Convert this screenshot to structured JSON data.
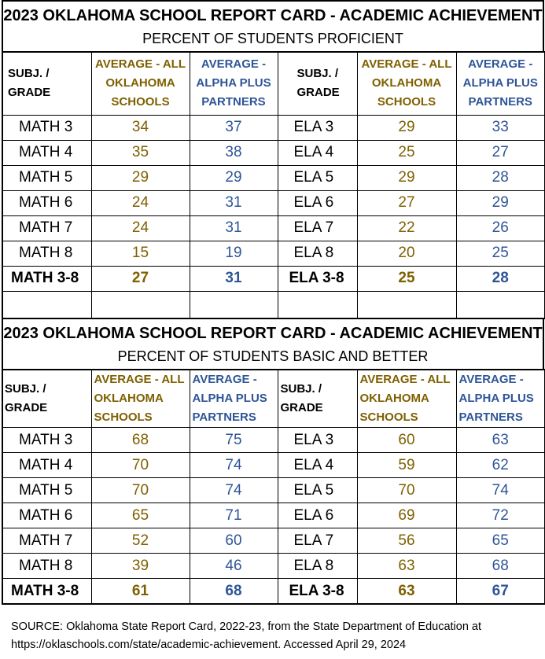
{
  "report1": {
    "title": "2023 OKLAHOMA SCHOOL REPORT CARD - ACADEMIC ACHIEVEMENT",
    "subtitle": "PERCENT OF STUDENTS PROFICIENT",
    "headers": {
      "math_subject": "SUBJ. / GRADE",
      "avg_all": [
        "AVERAGE - ALL",
        "OKLAHOMA",
        "SCHOOLS"
      ],
      "avg_alpha": [
        "AVERAGE -",
        "ALPHA PLUS",
        "PARTNERS"
      ],
      "ela_subject": [
        "SUBJ. /",
        "GRADE"
      ]
    },
    "rows": [
      {
        "math": "MATH 3",
        "math_all": "34",
        "math_alpha": "37",
        "ela": "ELA 3",
        "ela_all": "29",
        "ela_alpha": "33"
      },
      {
        "math": "MATH 4",
        "math_all": "35",
        "math_alpha": "38",
        "ela": "ELA 4",
        "ela_all": "25",
        "ela_alpha": "27"
      },
      {
        "math": "MATH 5",
        "math_all": "29",
        "math_alpha": "29",
        "ela": "ELA 5",
        "ela_all": "29",
        "ela_alpha": "28"
      },
      {
        "math": "MATH 6",
        "math_all": "24",
        "math_alpha": "31",
        "ela": "ELA 6",
        "ela_all": "27",
        "ela_alpha": "29"
      },
      {
        "math": "MATH 7",
        "math_all": "24",
        "math_alpha": "31",
        "ela": "ELA 7",
        "ela_all": "22",
        "ela_alpha": "26"
      },
      {
        "math": "MATH 8",
        "math_all": "15",
        "math_alpha": "19",
        "ela": "ELA 8",
        "ela_all": "20",
        "ela_alpha": "25"
      }
    ],
    "total": {
      "math": "MATH 3-8",
      "math_all": "27",
      "math_alpha": "31",
      "ela": "ELA 3-8",
      "ela_all": "25",
      "ela_alpha": "28"
    }
  },
  "report2": {
    "title": "2023 OKLAHOMA SCHOOL REPORT CARD - ACADEMIC ACHIEVEMENT",
    "subtitle": "PERCENT OF STUDENTS BASIC AND BETTER",
    "headers": {
      "math_subject": "SUBJ. / GRADE",
      "avg_all": [
        "AVERAGE - ALL",
        "OKLAHOMA",
        "SCHOOLS"
      ],
      "avg_alpha": [
        "AVERAGE -",
        "ALPHA PLUS",
        "PARTNERS"
      ],
      "ela_subject": [
        "SUBJ. /",
        "GRADE"
      ]
    },
    "rows": [
      {
        "math": "MATH 3",
        "math_all": "68",
        "math_alpha": "75",
        "ela": "ELA 3",
        "ela_all": "60",
        "ela_alpha": "63"
      },
      {
        "math": "MATH 4",
        "math_all": "70",
        "math_alpha": "74",
        "ela": "ELA 4",
        "ela_all": "59",
        "ela_alpha": "62"
      },
      {
        "math": "MATH 5",
        "math_all": "70",
        "math_alpha": "74",
        "ela": "ELA 5",
        "ela_all": "70",
        "ela_alpha": "74"
      },
      {
        "math": "MATH 6",
        "math_all": "65",
        "math_alpha": "71",
        "ela": "ELA 6",
        "ela_all": "69",
        "ela_alpha": "72"
      },
      {
        "math": "MATH 7",
        "math_all": "52",
        "math_alpha": "60",
        "ela": "ELA 7",
        "ela_all": "56",
        "ela_alpha": "65"
      },
      {
        "math": "MATH 8",
        "math_all": "39",
        "math_alpha": "46",
        "ela": "ELA 8",
        "ela_all": "63",
        "ela_alpha": "68"
      }
    ],
    "total": {
      "math": "MATH 3-8",
      "math_all": "61",
      "math_alpha": "68",
      "ela": "ELA 3-8",
      "ela_all": "63",
      "ela_alpha": "67"
    }
  },
  "source": {
    "line1": "SOURCE: Oklahoma State Report Card, 2022-23, from the State Department of Education at",
    "line2": "https://oklaschools.com/state/academic-achievement. Accessed April 29, 2024"
  },
  "colors": {
    "gold": "#7f6000",
    "blue": "#2f5597"
  }
}
